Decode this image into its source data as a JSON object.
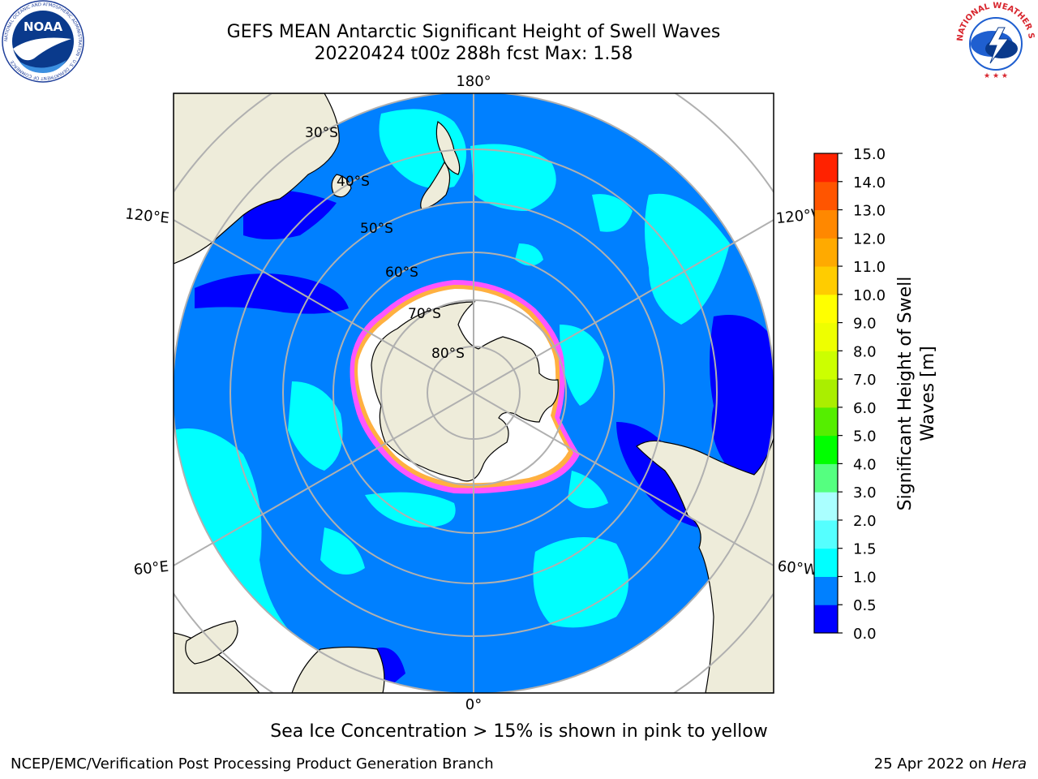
{
  "header": {
    "title_line1": "GEFS MEAN Antarctic Significant Height of Swell Waves",
    "title_line2": "20220424 t00z 288h fcst   Max: 1.58"
  },
  "logos": {
    "noaa": {
      "icon": "noaa-logo",
      "text": "NOAA",
      "ring_text": "NATIONAL OCEANIC AND ATMOSPHERIC ADMINISTRATION · U.S. DEPARTMENT OF COMMERCE"
    },
    "nws": {
      "icon": "nws-logo",
      "ring_text": "NATIONAL WEATHER SERVICE"
    }
  },
  "map": {
    "projection": "south-polar-stereographic",
    "longitude_labels": {
      "top": "180°",
      "bottom": "0°",
      "upper_left": "120°E",
      "upper_right": "120°W",
      "lower_left": "60°E",
      "lower_right": "60°W"
    },
    "latitude_labels": [
      "30°S",
      "40°S",
      "50°S",
      "60°S",
      "70°S",
      "80°S"
    ],
    "colors": {
      "land": "#eeecda",
      "ice_edge": [
        "#ff33ff",
        "#ffaa33"
      ],
      "grid": "#b0b0b0"
    }
  },
  "colorbar": {
    "label_line1": "Significant Height of Swell",
    "label_line2": "Waves [m]",
    "ticks": [
      "15.0",
      "14.0",
      "13.0",
      "12.0",
      "11.0",
      "10.0",
      "9.0",
      "8.0",
      "7.0",
      "6.0",
      "5.0",
      "4.0",
      "3.0",
      "2.0",
      "1.5",
      "1.0",
      "0.5",
      "0.0"
    ],
    "bins": [
      {
        "min": 0.0,
        "color": "#0000ff"
      },
      {
        "min": 0.5,
        "color": "#0080ff"
      },
      {
        "min": 1.0,
        "color": "#00ffff"
      },
      {
        "min": 1.5,
        "color": "#55ffff"
      },
      {
        "min": 2.0,
        "color": "#aaffff"
      },
      {
        "min": 3.0,
        "color": "#55ff80"
      },
      {
        "min": 4.0,
        "color": "#00ff00"
      },
      {
        "min": 5.0,
        "color": "#55ee00"
      },
      {
        "min": 6.0,
        "color": "#aaee00"
      },
      {
        "min": 7.0,
        "color": "#ccff00"
      },
      {
        "min": 8.0,
        "color": "#eeff00"
      },
      {
        "min": 9.0,
        "color": "#ffff00"
      },
      {
        "min": 10.0,
        "color": "#ffcc00"
      },
      {
        "min": 11.0,
        "color": "#ffaa00"
      },
      {
        "min": 12.0,
        "color": "#ff8800"
      },
      {
        "min": 13.0,
        "color": "#ff5500"
      },
      {
        "min": 14.0,
        "color": "#ff2200"
      },
      {
        "min": 15.0,
        "color": "#ff0000"
      }
    ]
  },
  "caption": "Sea Ice Concentration > 15% is shown in pink to yellow",
  "footer": {
    "left": "NCEP/EMC/Verification Post Processing Product Generation Branch",
    "right_date": "25 Apr 2022 on ",
    "right_host": "Hera"
  }
}
